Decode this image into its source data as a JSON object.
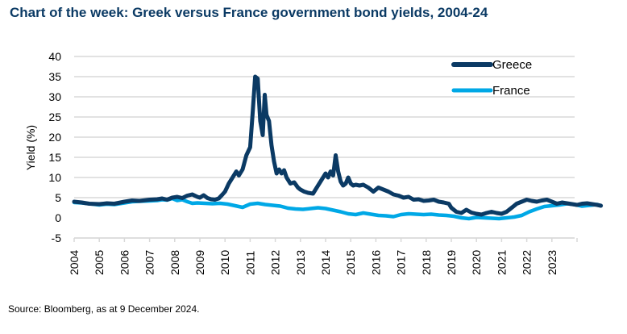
{
  "chart_data": {
    "type": "line",
    "title": "Chart of the week: Greek versus France government bond yields, 2004-24",
    "xlabel": "",
    "ylabel": "Yield (%)",
    "ylim": [
      -5,
      40
    ],
    "yticks": [
      40,
      35,
      30,
      25,
      20,
      15,
      10,
      5,
      0,
      -5
    ],
    "xlim": [
      2004,
      2024.95
    ],
    "xticks": [
      "2004",
      "2005",
      "2006",
      "2007",
      "2008",
      "2009",
      "2010",
      "2011",
      "2012",
      "2013",
      "2014",
      "2015",
      "2016",
      "2017",
      "2018",
      "2019",
      "2020",
      "2021",
      "2022",
      "2023"
    ],
    "grid": true,
    "legend": "top-right",
    "colors": {
      "Greece": "#0b3a64",
      "France": "#00a8e6",
      "grid": "#d9d9d9"
    },
    "series": [
      {
        "name": "Greece",
        "x": [
          2004.0,
          2004.3,
          2004.6,
          2005.0,
          2005.3,
          2005.6,
          2006.0,
          2006.3,
          2006.6,
          2007.0,
          2007.3,
          2007.5,
          2007.7,
          2007.9,
          2008.1,
          2008.3,
          2008.5,
          2008.7,
          2008.9,
          2009.0,
          2009.15,
          2009.3,
          2009.45,
          2009.6,
          2009.75,
          2009.9,
          2010.0,
          2010.15,
          2010.3,
          2010.45,
          2010.55,
          2010.7,
          2010.85,
          2011.0,
          2011.1,
          2011.2,
          2011.3,
          2011.4,
          2011.5,
          2011.58,
          2011.65,
          2011.75,
          2011.85,
          2011.95,
          2012.05,
          2012.15,
          2012.25,
          2012.35,
          2012.45,
          2012.6,
          2012.75,
          2012.9,
          2013.0,
          2013.15,
          2013.3,
          2013.5,
          2013.7,
          2013.85,
          2014.0,
          2014.1,
          2014.2,
          2014.3,
          2014.4,
          2014.5,
          2014.6,
          2014.7,
          2014.8,
          2014.9,
          2015.0,
          2015.1,
          2015.2,
          2015.35,
          2015.5,
          2015.7,
          2015.9,
          2016.1,
          2016.3,
          2016.5,
          2016.7,
          2016.9,
          2017.1,
          2017.3,
          2017.5,
          2017.7,
          2017.9,
          2018.1,
          2018.3,
          2018.5,
          2018.7,
          2018.9,
          2019.0,
          2019.2,
          2019.4,
          2019.6,
          2019.8,
          2020.0,
          2020.2,
          2020.4,
          2020.6,
          2020.8,
          2021.0,
          2021.2,
          2021.4,
          2021.6,
          2021.8,
          2022.0,
          2022.2,
          2022.4,
          2022.6,
          2022.8,
          2023.0,
          2023.2,
          2023.4,
          2023.6,
          2023.8,
          2024.0,
          2024.2,
          2024.4,
          2024.6,
          2024.8,
          2024.95
        ],
        "values": [
          4.0,
          3.8,
          3.5,
          3.4,
          3.6,
          3.5,
          4.0,
          4.3,
          4.2,
          4.5,
          4.6,
          4.8,
          4.5,
          5.0,
          5.2,
          4.9,
          5.5,
          5.8,
          5.2,
          5.0,
          5.6,
          4.9,
          4.6,
          4.5,
          4.8,
          5.8,
          6.5,
          8.5,
          10.0,
          11.5,
          10.5,
          12.0,
          15.5,
          17.5,
          26.0,
          35.0,
          34.5,
          24.0,
          20.5,
          30.5,
          25.5,
          24.0,
          18.0,
          14.0,
          11.0,
          12.0,
          11.0,
          11.8,
          10.0,
          8.5,
          8.8,
          7.5,
          7.0,
          6.5,
          6.2,
          6.0,
          8.0,
          9.5,
          11.0,
          10.0,
          11.5,
          10.5,
          15.5,
          11.5,
          9.0,
          8.0,
          8.5,
          10.0,
          8.5,
          8.0,
          8.2,
          8.0,
          8.2,
          7.5,
          6.5,
          7.5,
          7.0,
          6.5,
          5.8,
          5.5,
          5.0,
          5.2,
          4.5,
          4.6,
          4.2,
          4.3,
          4.5,
          4.0,
          3.8,
          3.5,
          2.5,
          1.5,
          1.2,
          2.0,
          1.3,
          1.0,
          0.8,
          1.2,
          1.5,
          1.2,
          1.0,
          1.5,
          2.5,
          3.5,
          4.0,
          4.5,
          4.2,
          4.0,
          4.3,
          4.5,
          4.0,
          3.5,
          3.8,
          3.6,
          3.4,
          3.2,
          3.5,
          3.6,
          3.4,
          3.2,
          3.0
        ]
      },
      {
        "name": "France",
        "x": [
          2004.0,
          2004.3,
          2004.6,
          2005.0,
          2005.3,
          2005.6,
          2006.0,
          2006.3,
          2006.6,
          2007.0,
          2007.3,
          2007.5,
          2007.7,
          2007.9,
          2008.1,
          2008.3,
          2008.5,
          2008.7,
          2008.9,
          2009.2,
          2009.5,
          2009.8,
          2010.1,
          2010.4,
          2010.7,
          2011.0,
          2011.3,
          2011.6,
          2011.9,
          2012.2,
          2012.5,
          2012.8,
          2013.1,
          2013.4,
          2013.7,
          2014.0,
          2014.3,
          2014.6,
          2014.9,
          2015.2,
          2015.5,
          2015.8,
          2016.1,
          2016.4,
          2016.7,
          2017.0,
          2017.3,
          2017.6,
          2017.9,
          2018.2,
          2018.5,
          2018.8,
          2019.1,
          2019.4,
          2019.7,
          2020.0,
          2020.3,
          2020.6,
          2020.9,
          2021.2,
          2021.5,
          2021.8,
          2022.1,
          2022.4,
          2022.7,
          2023.0,
          2023.3,
          2023.6,
          2023.9,
          2024.2,
          2024.5,
          2024.8,
          2024.95
        ],
        "values": [
          3.8,
          3.7,
          3.5,
          3.2,
          3.4,
          3.3,
          3.7,
          4.0,
          4.1,
          4.2,
          4.3,
          4.5,
          4.4,
          4.8,
          4.3,
          4.5,
          4.0,
          3.6,
          3.7,
          3.6,
          3.5,
          3.6,
          3.4,
          3.0,
          2.6,
          3.4,
          3.6,
          3.3,
          3.1,
          2.9,
          2.4,
          2.2,
          2.1,
          2.3,
          2.5,
          2.3,
          1.9,
          1.5,
          1.0,
          0.8,
          1.2,
          0.9,
          0.6,
          0.5,
          0.3,
          0.8,
          1.0,
          0.9,
          0.8,
          0.9,
          0.7,
          0.6,
          0.4,
          0.0,
          -0.2,
          0.1,
          0.0,
          -0.1,
          -0.2,
          0.0,
          0.2,
          0.6,
          1.5,
          2.2,
          2.8,
          3.0,
          3.2,
          3.5,
          3.3,
          2.9,
          3.1,
          3.3,
          3.0
        ]
      }
    ]
  },
  "title": "Chart of the week: Greek versus France government bond yields, 2004-24",
  "source": "Source: Bloomberg, as at 9 December 2024."
}
